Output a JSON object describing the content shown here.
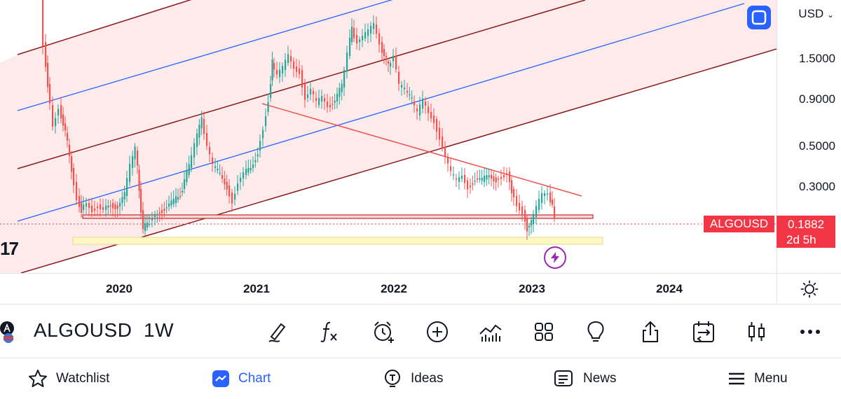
{
  "chart": {
    "currency": "USD",
    "price_ticks": [
      "1.5000",
      "0.9000",
      "0.5000",
      "0.3000"
    ],
    "last_price": "0.1882",
    "countdown": "2d 5h",
    "symbol_tag": "ALGOUSD",
    "time_ticks": [
      "2020",
      "2021",
      "2022",
      "2023",
      "2024"
    ],
    "logo_text": "17",
    "colors": {
      "up": "#26a69a",
      "down": "#ef5350",
      "channel_dark": "#8b1a1a",
      "channel_blue": "#2962ff",
      "channel_fill": "#fde7e7",
      "support_box": "#fff8c4",
      "resistance_box": "#f8d8d8",
      "trendline": "#ef5350"
    }
  },
  "toolbar": {
    "symbol": "ALGOUSD",
    "interval": "1W",
    "tools": [
      "brush-icon",
      "fx-icon",
      "alarm-clock-icon",
      "plus-circle-icon",
      "indicator-icon",
      "grid-icon",
      "lightbulb-icon",
      "share-icon",
      "compare-icon",
      "candle-icon",
      "more-icon"
    ]
  },
  "nav": {
    "watchlist": "Watchlist",
    "chart": "Chart",
    "ideas": "Ideas",
    "news": "News",
    "menu": "Menu"
  }
}
